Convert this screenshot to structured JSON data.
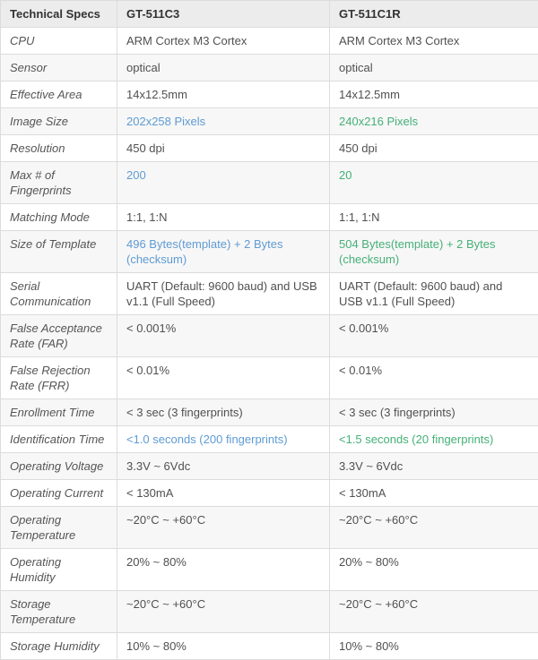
{
  "colors": {
    "accent_c3": "#5f9bd3",
    "accent_c1r": "#45b077",
    "header_bg": "#ececec",
    "stripe_bg": "#f7f7f7",
    "border": "#dcdcdc",
    "text": "#505050"
  },
  "table": {
    "headers": [
      "Technical Specs",
      "GT-511C3",
      "GT-511C1R"
    ],
    "rows": [
      {
        "label": "CPU",
        "gt511c3": "ARM Cortex M3 Cortex",
        "gt511c1r": "ARM Cortex M3 Cortex",
        "colored": false
      },
      {
        "label": "Sensor",
        "gt511c3": "optical",
        "gt511c1r": "optical",
        "colored": false
      },
      {
        "label": "Effective Area",
        "gt511c3": "14x12.5mm",
        "gt511c1r": "14x12.5mm",
        "colored": false
      },
      {
        "label": "Image Size",
        "gt511c3": "202x258 Pixels",
        "gt511c1r": "240x216 Pixels",
        "colored": true
      },
      {
        "label": "Resolution",
        "gt511c3": "450 dpi",
        "gt511c1r": "450 dpi",
        "colored": false
      },
      {
        "label": "Max # of Fingerprints",
        "gt511c3": "200",
        "gt511c1r": "20",
        "colored": true
      },
      {
        "label": "Matching Mode",
        "gt511c3": "1:1, 1:N",
        "gt511c1r": "1:1, 1:N",
        "colored": false
      },
      {
        "label": "Size of Template",
        "gt511c3": "496 Bytes(template) + 2 Bytes (checksum)",
        "gt511c1r": "504 Bytes(template) + 2 Bytes (checksum)",
        "colored": true
      },
      {
        "label": "Serial Communication",
        "gt511c3": "UART (Default: 9600 baud) and USB v1.1 (Full Speed)",
        "gt511c1r": "UART (Default: 9600 baud) and USB v1.1 (Full Speed)",
        "colored": false
      },
      {
        "label": "False Acceptance Rate (FAR)",
        "gt511c3": "< 0.001%",
        "gt511c1r": "< 0.001%",
        "colored": false
      },
      {
        "label": "False Rejection Rate (FRR)",
        "gt511c3": "< 0.01%",
        "gt511c1r": "< 0.01%",
        "colored": false
      },
      {
        "label": "Enrollment Time",
        "gt511c3": "< 3 sec (3 fingerprints)",
        "gt511c1r": "< 3 sec (3 fingerprints)",
        "colored": false
      },
      {
        "label": "Identification Time",
        "gt511c3": "<1.0 seconds (200 fingerprints)",
        "gt511c1r": "<1.5 seconds (20 fingerprints)",
        "colored": true
      },
      {
        "label": "Operating Voltage",
        "gt511c3": "3.3V ~ 6Vdc",
        "gt511c1r": "3.3V ~ 6Vdc",
        "colored": false
      },
      {
        "label": "Operating Current",
        "gt511c3": "< 130mA",
        "gt511c1r": "< 130mA",
        "colored": false
      },
      {
        "label": "Operating Temperature",
        "gt511c3": "~20°C ~ +60°C",
        "gt511c1r": "~20°C ~ +60°C",
        "colored": false
      },
      {
        "label": "Operating Humidity",
        "gt511c3": "20% ~ 80%",
        "gt511c1r": "20% ~ 80%",
        "colored": false
      },
      {
        "label": "Storage Temperature",
        "gt511c3": "~20°C ~ +60°C",
        "gt511c1r": "~20°C ~ +60°C",
        "colored": false
      },
      {
        "label": "Storage Humidity",
        "gt511c3": "10% ~ 80%",
        "gt511c1r": "10% ~ 80%",
        "colored": false
      }
    ]
  }
}
